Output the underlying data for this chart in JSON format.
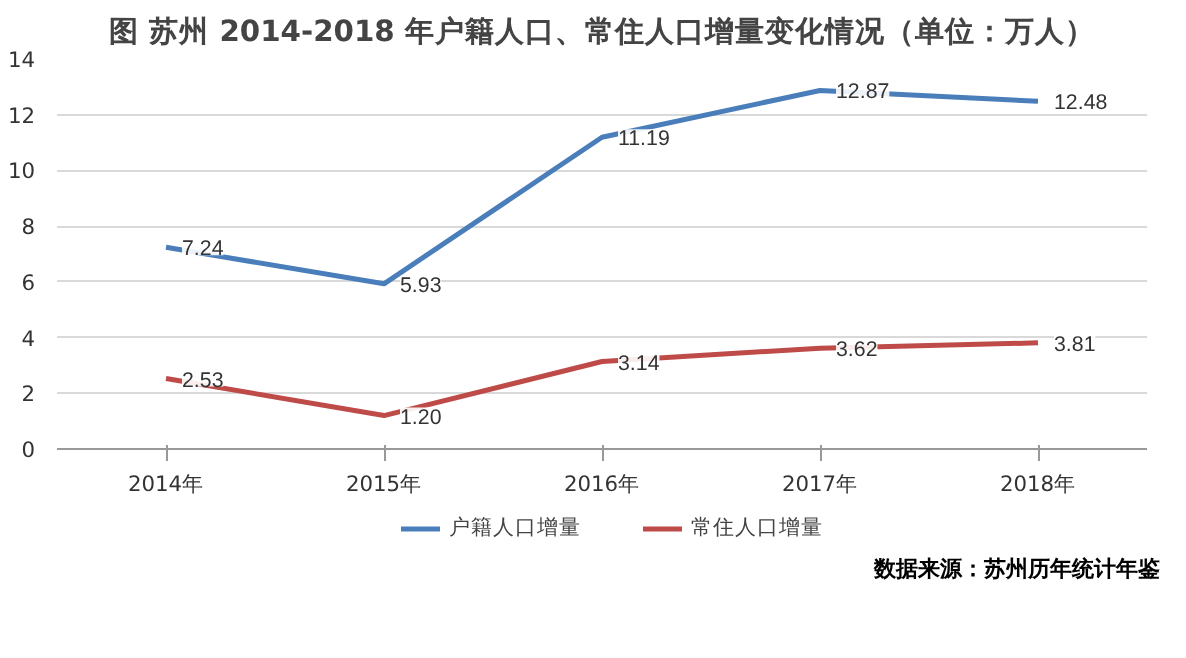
{
  "chart_data": {
    "type": "line",
    "title": "图 苏州 2014-2018 年户籍人口、常住人口增量变化情况（单位：万人）",
    "categories": [
      "2014年",
      "2015年",
      "2016年",
      "2017年",
      "2018年"
    ],
    "series": [
      {
        "name": "户籍人口增量",
        "color": "#4a7ebb",
        "values": [
          7.24,
          5.93,
          11.19,
          12.87,
          12.48
        ],
        "value_labels": [
          "7.24",
          "5.93",
          "11.19",
          "12.87",
          "12.48"
        ]
      },
      {
        "name": "常住人口增量",
        "color": "#be4b48",
        "values": [
          2.53,
          1.2,
          3.14,
          3.62,
          3.81
        ],
        "value_labels": [
          "2.53",
          "1.20",
          "3.14",
          "3.62",
          "3.81"
        ]
      }
    ],
    "ylim": [
      0,
      14
    ],
    "yticks": [
      0,
      2,
      4,
      6,
      8,
      10,
      12,
      14
    ],
    "grid": "y",
    "legend": "bottom",
    "line_style": "solid",
    "marker": "none",
    "annotations": [
      "数据来源：苏州历年统计年鉴"
    ]
  }
}
